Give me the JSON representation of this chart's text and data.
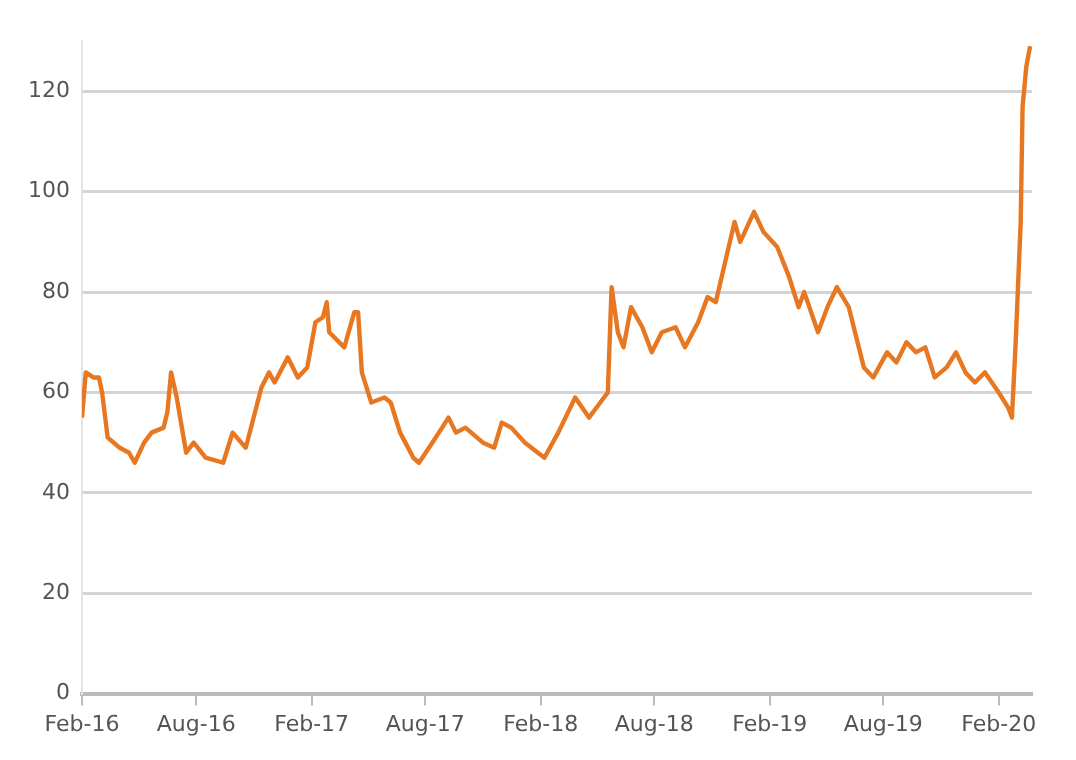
{
  "chart_data": {
    "type": "line",
    "x": [
      "2016-02-01",
      "2016-02-07",
      "2016-02-19",
      "2016-02-28",
      "2016-03-04",
      "2016-03-13",
      "2016-04-01",
      "2016-04-16",
      "2016-04-25",
      "2016-05-10",
      "2016-05-22",
      "2016-06-10",
      "2016-06-16",
      "2016-06-22",
      "2016-07-01",
      "2016-07-16",
      "2016-07-28",
      "2016-08-16",
      "2016-09-13",
      "2016-09-28",
      "2016-10-19",
      "2016-11-13",
      "2016-11-25",
      "2016-12-04",
      "2016-12-25",
      "2017-01-10",
      "2017-01-25",
      "2017-02-07",
      "2017-02-19",
      "2017-02-25",
      "2017-03-01",
      "2017-03-25",
      "2017-04-10",
      "2017-04-16",
      "2017-04-22",
      "2017-05-07",
      "2017-05-28",
      "2017-06-07",
      "2017-06-22",
      "2017-07-13",
      "2017-07-22",
      "2017-08-07",
      "2017-08-28",
      "2017-09-07",
      "2017-09-19",
      "2017-10-04",
      "2017-11-01",
      "2017-11-19",
      "2017-12-01",
      "2017-12-16",
      "2018-01-07",
      "2018-02-07",
      "2018-03-01",
      "2018-03-28",
      "2018-04-19",
      "2018-05-07",
      "2018-05-19",
      "2018-05-25",
      "2018-06-04",
      "2018-06-13",
      "2018-06-25",
      "2018-07-13",
      "2018-07-28",
      "2018-08-13",
      "2018-09-04",
      "2018-09-19",
      "2018-10-10",
      "2018-10-25",
      "2018-11-07",
      "2018-11-22",
      "2018-12-07",
      "2018-12-16",
      "2019-01-07",
      "2019-01-22",
      "2019-02-13",
      "2019-03-04",
      "2019-03-19",
      "2019-03-28",
      "2019-04-19",
      "2019-05-04",
      "2019-05-19",
      "2019-06-07",
      "2019-07-01",
      "2019-07-16",
      "2019-08-07",
      "2019-08-22",
      "2019-09-07",
      "2019-09-22",
      "2019-10-07",
      "2019-10-22",
      "2019-11-10",
      "2019-11-25",
      "2019-12-10",
      "2019-12-25",
      "2020-01-10",
      "2020-02-01",
      "2020-02-16",
      "2020-02-22",
      "2020-02-28",
      "2020-03-07",
      "2020-03-10",
      "2020-03-16",
      "2020-03-22"
    ],
    "series": [
      {
        "color": "#e87722",
        "values": [
          55,
          64,
          63,
          63,
          60,
          51,
          49,
          48,
          46,
          50,
          52,
          53,
          56,
          64,
          59,
          48,
          50,
          47,
          46,
          52,
          49,
          61,
          64,
          62,
          67,
          63,
          65,
          74,
          75,
          78,
          72,
          69,
          76,
          76,
          64,
          58,
          59,
          58,
          52,
          47,
          46,
          49,
          53,
          55,
          52,
          53,
          50,
          49,
          54,
          53,
          50,
          47,
          52,
          59,
          55,
          58,
          60,
          81,
          72,
          69,
          77,
          73,
          68,
          72,
          73,
          69,
          74,
          79,
          78,
          86,
          94,
          90,
          96,
          92,
          89,
          83,
          77,
          80,
          72,
          77,
          81,
          77,
          65,
          63,
          68,
          66,
          70,
          68,
          69,
          63,
          65,
          68,
          64,
          62,
          64,
          60,
          57,
          55,
          70,
          94,
          117,
          125,
          129
        ]
      }
    ],
    "xlim": [
      "2016-02-01",
      "2020-03-25"
    ],
    "xticks": [
      {
        "value": "2016-02-01",
        "label": "Feb-16"
      },
      {
        "value": "2016-08-01",
        "label": "Aug-16"
      },
      {
        "value": "2017-02-01",
        "label": "Feb-17"
      },
      {
        "value": "2017-08-01",
        "label": "Aug-17"
      },
      {
        "value": "2018-02-01",
        "label": "Feb-18"
      },
      {
        "value": "2018-08-01",
        "label": "Aug-18"
      },
      {
        "value": "2019-02-01",
        "label": "Feb-19"
      },
      {
        "value": "2019-08-01",
        "label": "Aug-19"
      },
      {
        "value": "2020-02-01",
        "label": "Feb-20"
      }
    ],
    "ylim": [
      0,
      130
    ],
    "yticks": [
      0,
      20,
      40,
      60,
      80,
      100,
      120
    ],
    "grid": "y",
    "legend": false,
    "marker": "none",
    "line_style": "solid"
  }
}
